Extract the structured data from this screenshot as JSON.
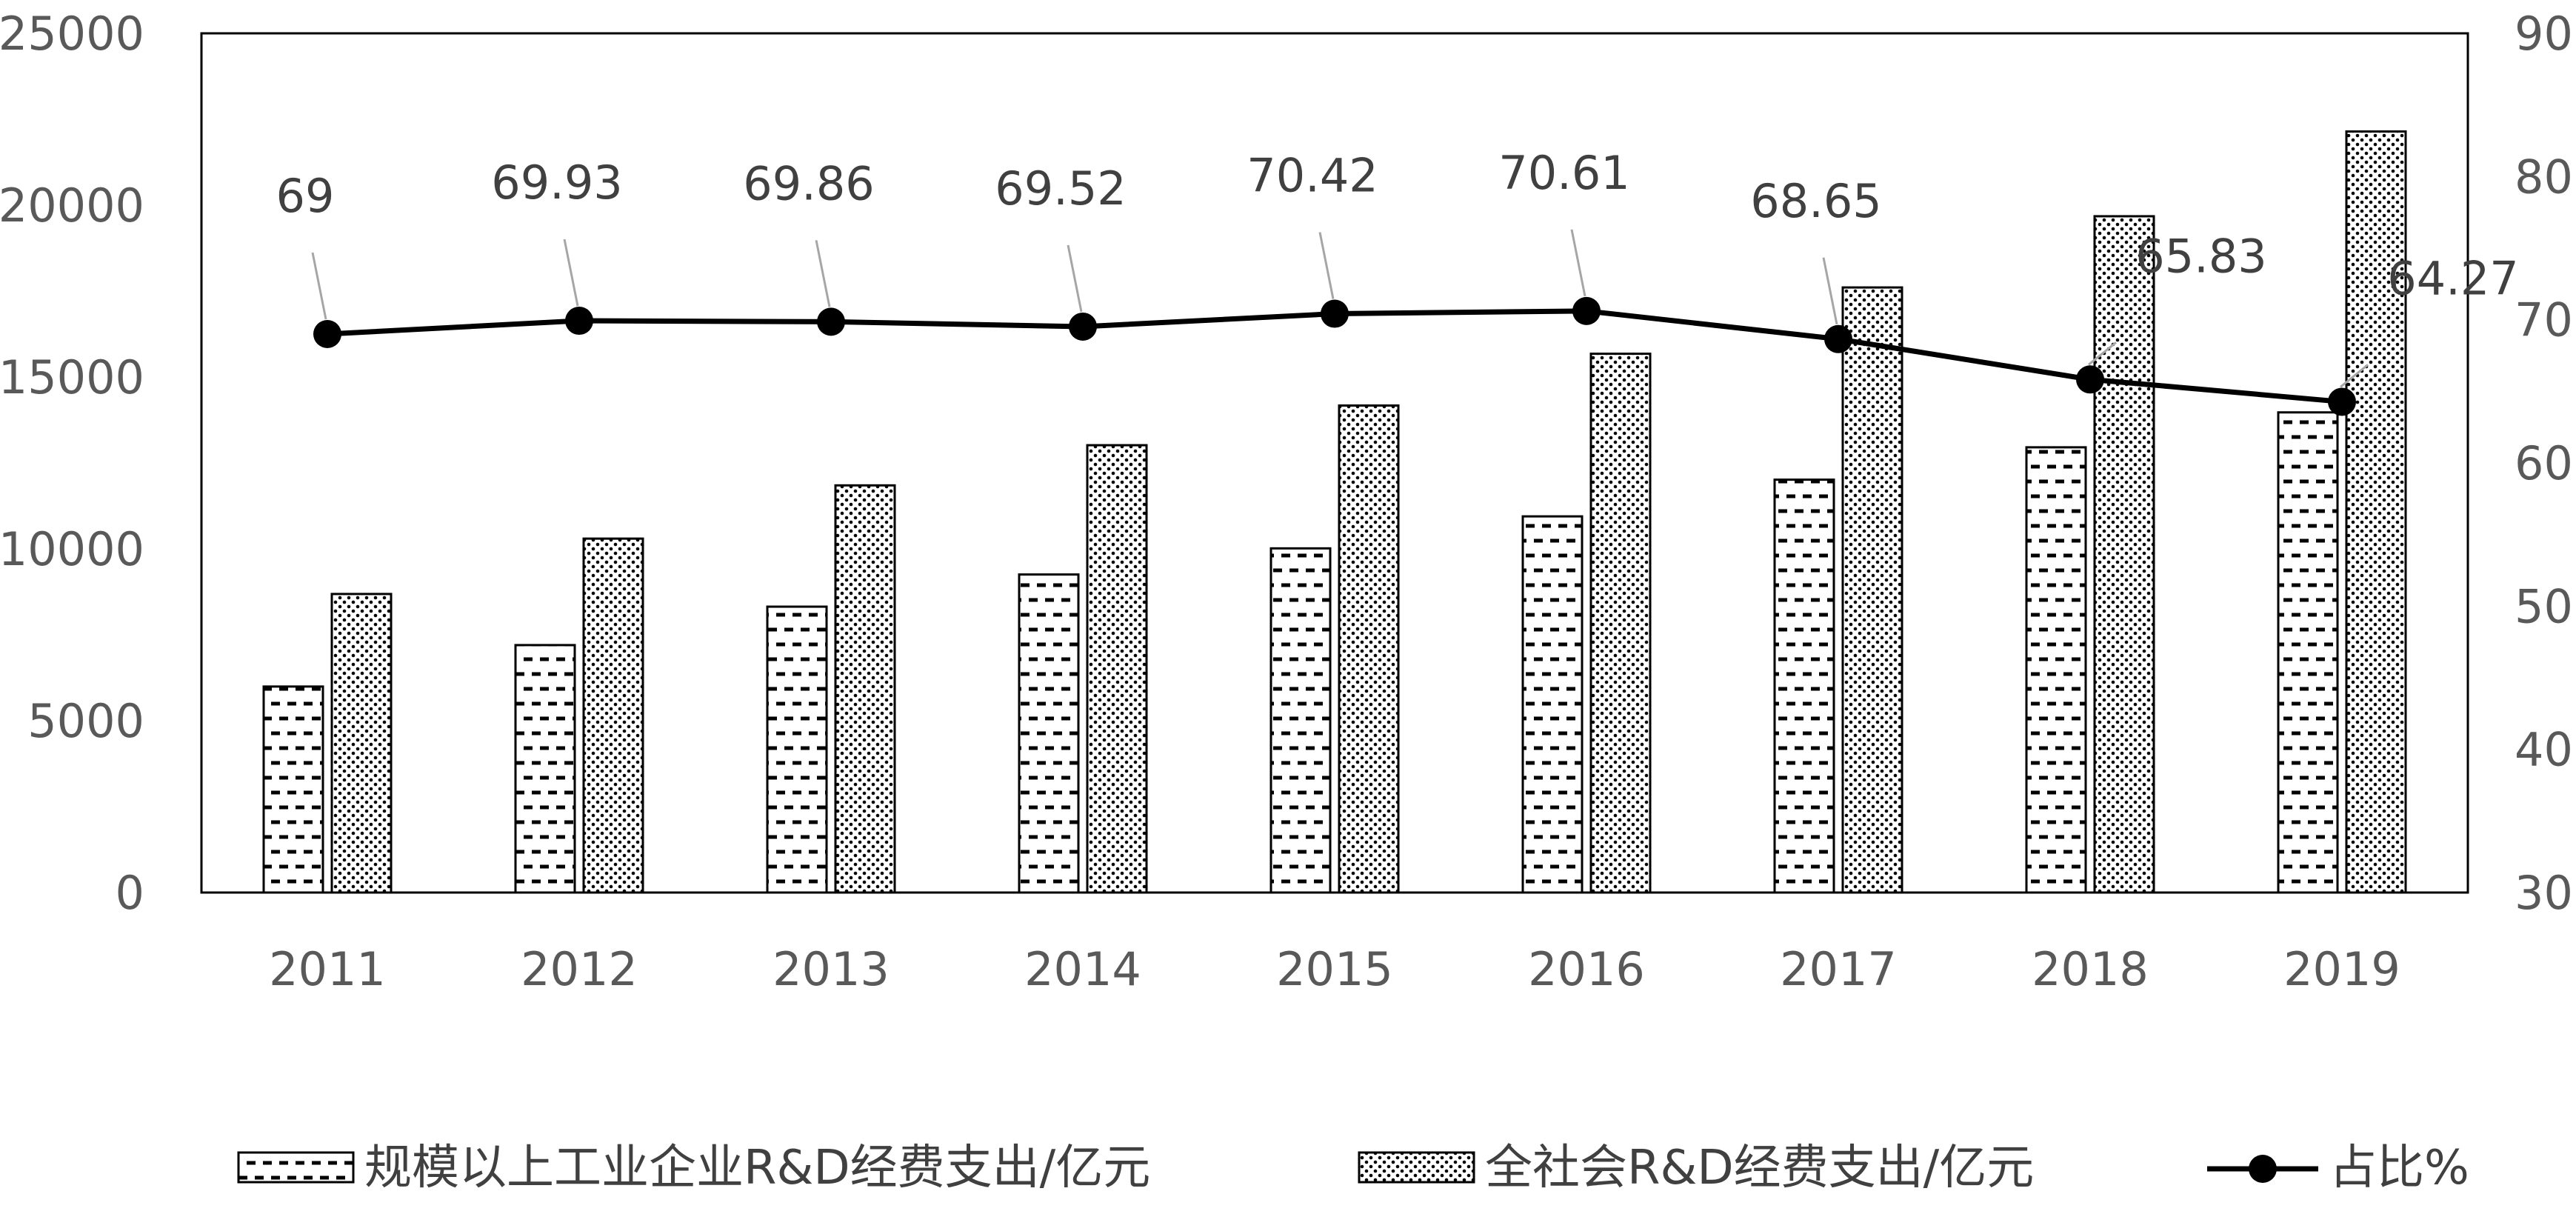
{
  "chart_data": {
    "type": "bar",
    "categories": [
      "2011",
      "2012",
      "2013",
      "2014",
      "2015",
      "2016",
      "2017",
      "2018",
      "2019"
    ],
    "series": [
      {
        "name": "规模以上工业企业R&D经费支出/亿元",
        "type": "bar",
        "axis": "left",
        "pattern": "dashes",
        "values": [
          5994,
          7200,
          8318,
          9254,
          10014,
          10945,
          12013,
          12955,
          13971
        ]
      },
      {
        "name": "全社会R&D经费支出/亿元",
        "type": "bar",
        "axis": "left",
        "pattern": "dots",
        "values": [
          8687,
          10298,
          11847,
          13016,
          14170,
          15677,
          17606,
          19678,
          22144
        ]
      },
      {
        "name": "占比%",
        "type": "line",
        "axis": "right",
        "marker": "circle",
        "values": [
          69,
          69.93,
          69.86,
          69.52,
          70.42,
          70.61,
          68.65,
          65.83,
          64.27
        ],
        "labels": [
          "69",
          "69.93",
          "69.86",
          "69.52",
          "70.42",
          "70.61",
          "68.65",
          "65.83",
          "64.27"
        ]
      }
    ],
    "y_left": {
      "min": 0,
      "max": 25000,
      "ticks": [
        "0",
        "5000",
        "10000",
        "15000",
        "20000",
        "25000"
      ]
    },
    "y_right": {
      "min": 30,
      "max": 90,
      "ticks": [
        "30",
        "40",
        "50",
        "60",
        "70",
        "80",
        "90"
      ]
    },
    "legend_position": "bottom",
    "grid": false
  }
}
